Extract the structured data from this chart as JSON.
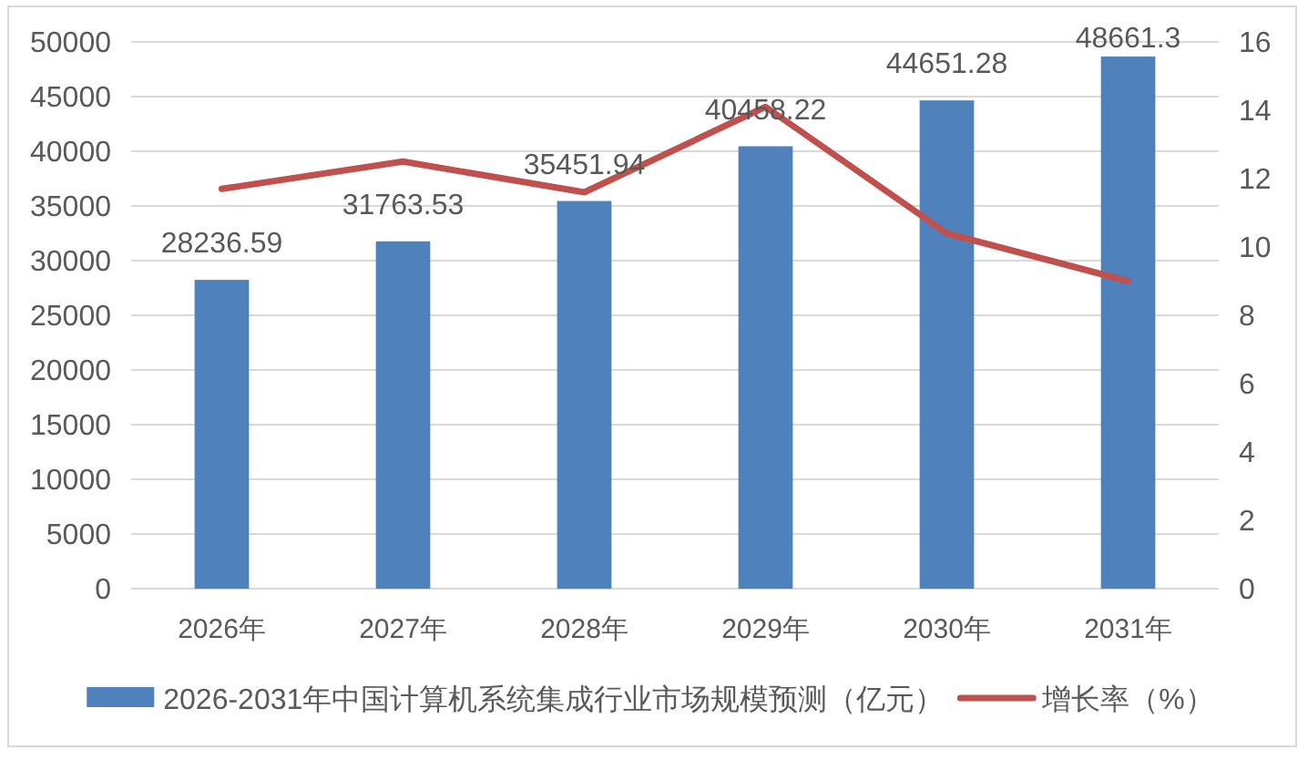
{
  "chart_data": {
    "type": "bar",
    "categories": [
      "2026年",
      "2027年",
      "2028年",
      "2029年",
      "2030年",
      "2031年"
    ],
    "series": [
      {
        "name": "2026-2031年中国计算机系统集成行业市场规模预测（亿元）",
        "color": "#4f81bd",
        "values": [
          28236.59,
          31763.53,
          35451.94,
          40458.22,
          44651.28,
          48661.3
        ],
        "value_labels": [
          "28236.59",
          "31763.53",
          "35451.94",
          "40458.22",
          "44651.28",
          "48661.3"
        ]
      },
      {
        "name": "增长率（%）",
        "type": "line",
        "axis": "y2",
        "color": "#c0504d",
        "values": [
          11.7,
          12.5,
          11.6,
          14.1,
          10.4,
          9.0
        ]
      }
    ],
    "ylim": [
      0,
      50000
    ],
    "yticks": [
      0,
      5000,
      10000,
      15000,
      20000,
      25000,
      30000,
      35000,
      40000,
      45000,
      50000
    ],
    "y2lim": [
      0,
      16
    ],
    "y2ticks": [
      0,
      2,
      4,
      6,
      8,
      10,
      12,
      14,
      16
    ],
    "grid": "y",
    "legend": "bottom",
    "line_style": "solid"
  }
}
